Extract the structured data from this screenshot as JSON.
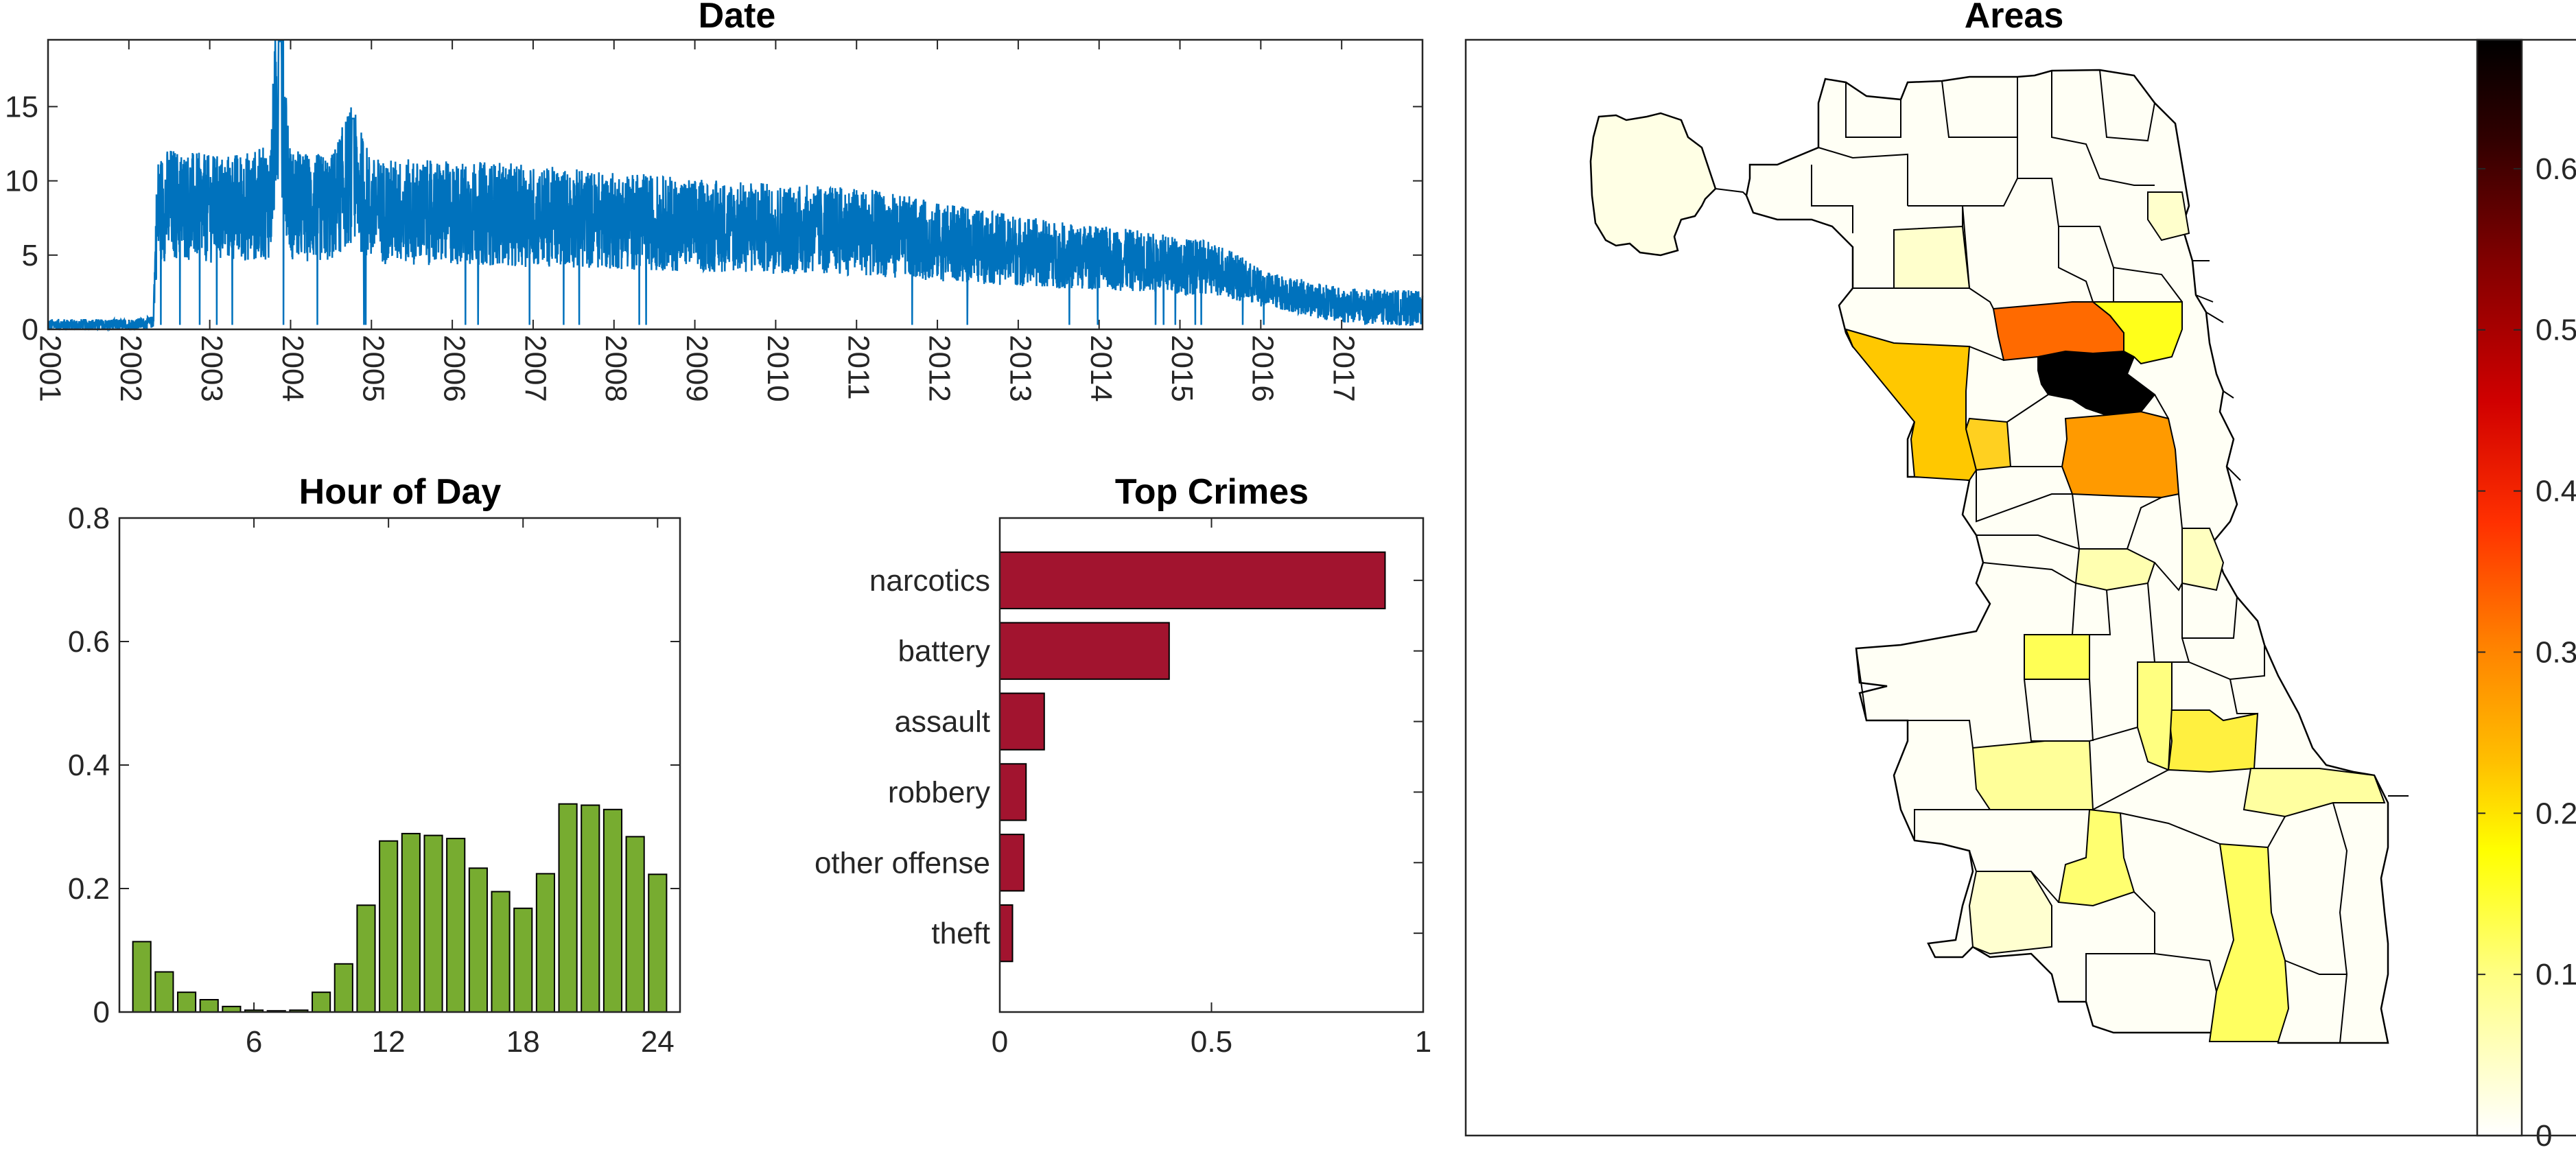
{
  "chart_data": [
    {
      "type": "line",
      "title": "Date",
      "xlabel": "",
      "ylabel": "",
      "x_range": [
        2001.0,
        2018.0
      ],
      "ylim": [
        0,
        19.5
      ],
      "yticks": [
        0,
        5,
        10,
        15
      ],
      "xticks": [
        "2001",
        "2002",
        "2003",
        "2004",
        "2005",
        "2006",
        "2007",
        "2008",
        "2009",
        "2010",
        "2011",
        "2012",
        "2013",
        "2014",
        "2015",
        "2016",
        "2017"
      ],
      "color": "#0072BD",
      "series": [
        {
          "x": [
            2001.0,
            2001.5,
            2002.0,
            2002.2,
            2002.3,
            2002.35,
            2002.5,
            2002.75,
            2003.0,
            2003.25,
            2003.5,
            2003.75,
            2003.85,
            2004.0,
            2004.25,
            2004.5,
            2004.75,
            2005.0,
            2005.5,
            2006.0,
            2006.5,
            2007.0,
            2007.5,
            2008.0,
            2008.5,
            2009.0,
            2009.5,
            2010.0,
            2010.5,
            2011.0,
            2011.5,
            2012.0,
            2012.5,
            2013.0,
            2013.5,
            2014.0,
            2014.5,
            2015.0,
            2015.5,
            2016.0,
            2016.5,
            2017.0,
            2017.5,
            2018.0
          ],
          "y": [
            0.3,
            0.3,
            0.3,
            0.4,
            0.5,
            8.0,
            8.5,
            8.3,
            8.1,
            8.2,
            8.3,
            8.6,
            17.5,
            8.4,
            8.2,
            8.1,
            10.5,
            8.0,
            7.9,
            7.8,
            7.8,
            7.6,
            7.5,
            7.3,
            7.2,
            7.0,
            6.9,
            6.8,
            6.7,
            6.6,
            6.3,
            5.9,
            5.6,
            5.3,
            5.0,
            4.8,
            4.6,
            4.3,
            4.0,
            2.8,
            2.2,
            1.6,
            1.5,
            1.4
          ]
        }
      ]
    },
    {
      "type": "bar",
      "title": "Hour of Day",
      "xlabel": "",
      "ylabel": "",
      "xlim": [
        0,
        25
      ],
      "ylim": [
        0,
        0.8
      ],
      "xticks": [
        6,
        12,
        18,
        24
      ],
      "yticks": [
        0,
        0.2,
        0.4,
        0.6,
        0.8
      ],
      "color": "#77AC30",
      "categories": [
        1,
        2,
        3,
        4,
        5,
        6,
        7,
        8,
        9,
        10,
        11,
        12,
        13,
        14,
        15,
        16,
        17,
        18,
        19,
        20,
        21,
        22,
        23,
        24
      ],
      "values": [
        0.114,
        0.065,
        0.032,
        0.02,
        0.009,
        0.003,
        0.002,
        0.003,
        0.032,
        0.078,
        0.173,
        0.277,
        0.289,
        0.286,
        0.281,
        0.233,
        0.195,
        0.168,
        0.224,
        0.337,
        0.335,
        0.328,
        0.284,
        0.223
      ]
    },
    {
      "type": "bar",
      "orientation": "horizontal",
      "title": "Top Crimes",
      "xlabel": "",
      "ylabel": "",
      "xlim": [
        0,
        1
      ],
      "xticks": [
        0,
        0.5,
        1
      ],
      "color": "#A2142F",
      "categories": [
        "narcotics",
        "battery",
        "assault",
        "robbery",
        "other offense",
        "theft"
      ],
      "values": [
        0.91,
        0.4,
        0.105,
        0.062,
        0.057,
        0.03
      ]
    },
    {
      "type": "heatmap",
      "title": "Areas",
      "colorbar": {
        "colormap": "hot (reversed)",
        "range": [
          0,
          0.68
        ],
        "ticks": [
          "0",
          "0.1",
          "0.2",
          "0.3",
          "0.4",
          "0.5",
          "0.6"
        ],
        "colors": [
          "#FFFFFF",
          "#FFFF80",
          "#FFFF00",
          "#FFC000",
          "#FF8000",
          "#FF3000",
          "#D00000",
          "#800000",
          "#300000",
          "#000000"
        ]
      },
      "areas": [
        {
          "intensity": 0.68
        },
        {
          "intensity": 0.36
        },
        {
          "intensity": 0.3
        },
        {
          "intensity": 0.17
        },
        {
          "intensity": 0.2
        },
        {
          "intensity": 0.18
        },
        {
          "intensity": 0.13
        },
        {
          "intensity": 0.12
        },
        {
          "intensity": 0.13
        },
        {
          "intensity": 0.11
        },
        {
          "intensity": 0.08
        },
        {
          "intensity": 0.06
        },
        {
          "intensity": 0.05
        },
        {
          "intensity": 0.04
        },
        {
          "intensity": 0.03
        },
        {
          "intensity": 0.02
        },
        {
          "intensity": 0.01
        }
      ]
    }
  ]
}
